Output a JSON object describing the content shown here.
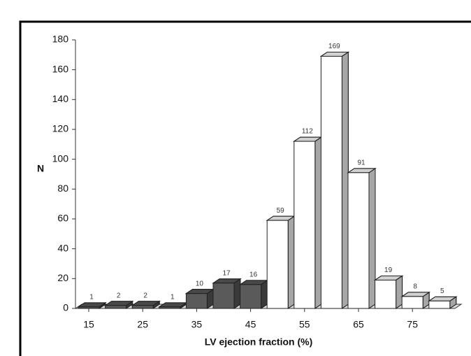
{
  "chart_data": {
    "type": "bar3d",
    "xlabel": "LV ejection fraction (%)",
    "ylabel": "N",
    "categories": [
      "15",
      null,
      "25",
      null,
      "35",
      null,
      "45",
      null,
      "55",
      null,
      "65",
      null,
      "75",
      null
    ],
    "values": [
      1,
      2,
      2,
      1,
      10,
      17,
      16,
      59,
      112,
      169,
      91,
      19,
      8,
      5
    ],
    "colors": [
      "#5a5a5a",
      "#5a5a5a",
      "#5a5a5a",
      "#5a5a5a",
      "#5a5a5a",
      "#5a5a5a",
      "#5a5a5a",
      "#ffffff",
      "#ffffff",
      "#ffffff",
      "#ffffff",
      "#ffffff",
      "#ffffff",
      "#ffffff"
    ],
    "ylim": [
      0,
      180
    ],
    "yticks": [
      0,
      20,
      40,
      60,
      80,
      100,
      120,
      140,
      160,
      180
    ]
  }
}
